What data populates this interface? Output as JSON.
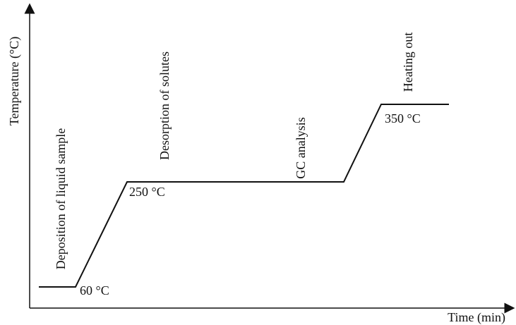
{
  "axes": {
    "y_label": "Temperature (°C)",
    "x_label": "Time (min)"
  },
  "stages": [
    {
      "label": "Deposition of liquid sample"
    },
    {
      "label": "Desorption of solutes"
    },
    {
      "label": "GC analysis"
    },
    {
      "label": "Heating out"
    }
  ],
  "temperatures": [
    "60 °C",
    "250 °C",
    "350 °C"
  ]
}
